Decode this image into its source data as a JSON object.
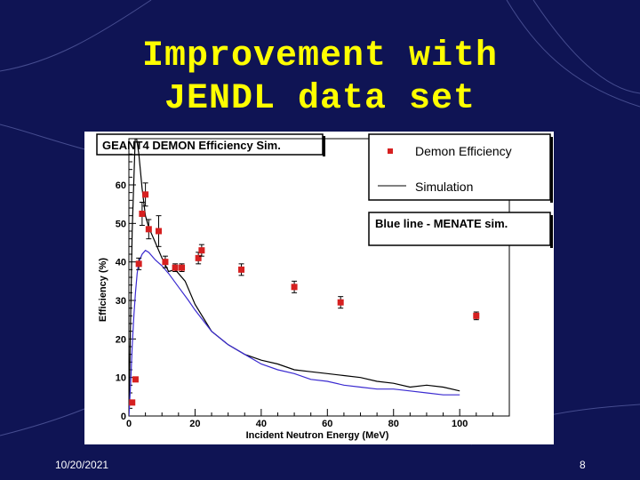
{
  "slide": {
    "title_line1": "Improvement with",
    "title_line2": "JENDL data set",
    "date": "10/20/2021",
    "page_number": "8"
  },
  "colors": {
    "background": "#0f1454",
    "title": "#ffff00",
    "data_points": "#d62020",
    "simulation_line": "#000000",
    "menate_line": "#3a2ad0"
  },
  "chart_data": {
    "type": "scatter",
    "title": "GEANT4 DEMON Efficiency Sim.",
    "xlabel": "Incident Neutron Energy (MeV)",
    "ylabel": "Efficiency (%)",
    "xlim": [
      0,
      115
    ],
    "ylim": [
      0,
      72
    ],
    "xticks": [
      "0",
      "20",
      "40",
      "60",
      "80",
      "100"
    ],
    "yticks": [
      "0",
      "10",
      "20",
      "30",
      "40",
      "50",
      "60"
    ],
    "legend": {
      "position": "top-right",
      "entries": [
        "Demon Efficiency",
        "Simulation"
      ]
    },
    "annotation": "Blue line - MENATE sim.",
    "grid": false,
    "series": [
      {
        "name": "Demon Efficiency",
        "kind": "points",
        "x": [
          1,
          2,
          3,
          4,
          5,
          6,
          9,
          11,
          14,
          16,
          21,
          22,
          34,
          50,
          64,
          105
        ],
        "y": [
          3.5,
          9.5,
          39.5,
          52.5,
          57.5,
          48.5,
          48,
          40,
          38.5,
          38.5,
          41,
          43,
          38,
          33.5,
          29.5,
          26
        ],
        "yerr": [
          0.5,
          0.5,
          1.5,
          3,
          3,
          2.5,
          4,
          1.5,
          1,
          1,
          1.5,
          1.5,
          1.5,
          1.5,
          1.5,
          1
        ]
      },
      {
        "name": "Simulation",
        "kind": "line",
        "x": [
          0,
          1,
          2,
          3,
          4,
          5,
          6,
          8,
          10,
          12,
          14,
          17,
          20,
          25,
          30,
          35,
          40,
          45,
          50,
          55,
          60,
          65,
          70,
          75,
          80,
          85,
          90,
          95,
          100
        ],
        "y": [
          0,
          48,
          74,
          68,
          59,
          52,
          49,
          45,
          41,
          37.5,
          38,
          35,
          29,
          22,
          18.5,
          16,
          14.5,
          13.5,
          12,
          11.5,
          11,
          10.5,
          10,
          9,
          8.5,
          7.5,
          8,
          7.5,
          6.5
        ]
      },
      {
        "kind": "line",
        "x": [
          0,
          0.5,
          1,
          1.5,
          2,
          2.5,
          3,
          4,
          5,
          6,
          8,
          10,
          12,
          15,
          18,
          20,
          25,
          30,
          35,
          40,
          45,
          50,
          55,
          60,
          65,
          70,
          75,
          80,
          85,
          90,
          95,
          100
        ],
        "y": [
          0,
          8,
          18,
          26,
          32,
          37,
          40,
          42,
          43,
          42.5,
          40.5,
          39,
          37,
          33.5,
          30,
          27.5,
          22,
          18.5,
          16,
          13.5,
          12,
          11,
          9.5,
          9,
          8,
          7.5,
          7,
          7,
          6.5,
          6,
          5.5,
          5.5
        ]
      }
    ]
  }
}
